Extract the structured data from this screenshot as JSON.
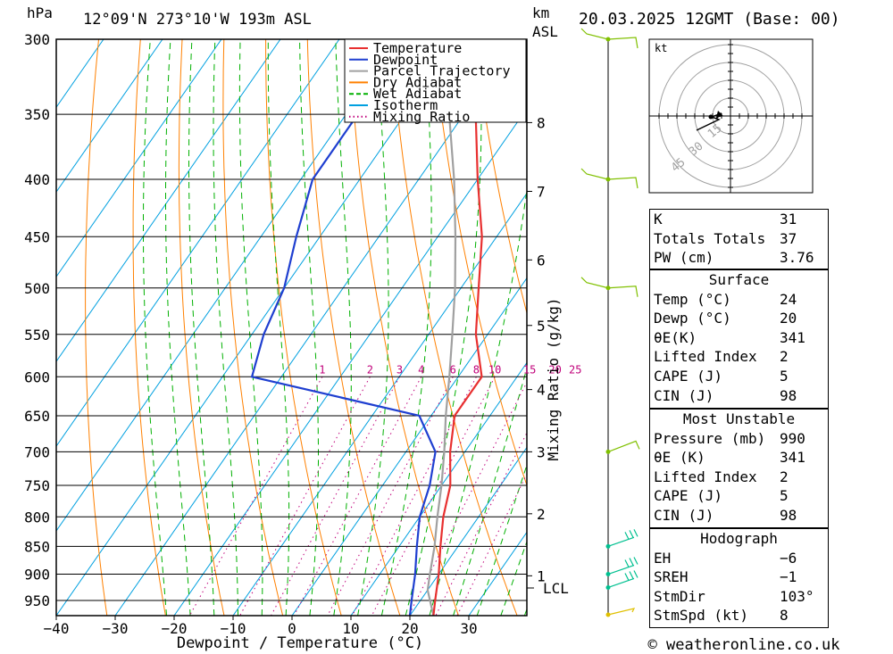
{
  "header": {
    "hpa_label": "hPa",
    "location": "12°09'N  273°10'W  193m  ASL",
    "km_label": "km",
    "asl_label": "ASL",
    "datetime": "20.03.2025  12GMT  (Base: 00)"
  },
  "axes": {
    "xlabel": "Dewpoint / Temperature (°C)",
    "right_label": "Mixing Ratio (g/kg)",
    "pressure_ticks": [
      "300",
      "350",
      "400",
      "450",
      "500",
      "550",
      "600",
      "650",
      "700",
      "750",
      "800",
      "850",
      "900",
      "950"
    ],
    "temp_ticks": [
      "−40",
      "−30",
      "−20",
      "−10",
      "0",
      "10",
      "20",
      "30"
    ],
    "km_ticks": [
      "8",
      "7",
      "6",
      "5",
      "4",
      "3",
      "2",
      "1"
    ],
    "lcl_label": "LCL",
    "mixing_ratio_labels": [
      "1",
      "2",
      "3",
      "4",
      "6",
      "8",
      "10",
      "15",
      "20",
      "25"
    ]
  },
  "legend": {
    "temperature": "Temperature",
    "dewpoint": "Dewpoint",
    "parcel": "Parcel Trajectory",
    "dry_adiabat": "Dry Adiabat",
    "wet_adiabat": "Wet Adiabat",
    "isotherm": "Isotherm",
    "mixing_ratio": "Mixing Ratio"
  },
  "colors": {
    "temperature": "#e83030",
    "dewpoint": "#1f3fd0",
    "parcel": "#a0a0a0",
    "dry_adiabat": "#ff8000",
    "wet_adiabat": "#00b000",
    "isotherm": "#00a0e0",
    "mixing_ratio": "#c0007a",
    "wind": "#80c000",
    "wind_low": "#00c090"
  },
  "chart_data": {
    "type": "skew-t",
    "pressure_range_hpa": [
      300,
      980
    ],
    "temperature_range_c": [
      -40,
      40
    ],
    "temperature_profile": [
      {
        "p": 980,
        "t": 24
      },
      {
        "p": 950,
        "t": 22.5
      },
      {
        "p": 900,
        "t": 20
      },
      {
        "p": 850,
        "t": 17
      },
      {
        "p": 800,
        "t": 14
      },
      {
        "p": 750,
        "t": 11.5
      },
      {
        "p": 700,
        "t": 7.5
      },
      {
        "p": 650,
        "t": 4
      },
      {
        "p": 600,
        "t": 4
      },
      {
        "p": 550,
        "t": -2
      },
      {
        "p": 500,
        "t": -7
      },
      {
        "p": 450,
        "t": -12.5
      },
      {
        "p": 400,
        "t": -20
      },
      {
        "p": 350,
        "t": -28
      },
      {
        "p": 300,
        "t": -36
      }
    ],
    "dewpoint_profile": [
      {
        "p": 980,
        "t": 20
      },
      {
        "p": 950,
        "t": 18.5
      },
      {
        "p": 900,
        "t": 16
      },
      {
        "p": 850,
        "t": 13
      },
      {
        "p": 800,
        "t": 10
      },
      {
        "p": 750,
        "t": 8
      },
      {
        "p": 700,
        "t": 5
      },
      {
        "p": 650,
        "t": -2
      },
      {
        "p": 600,
        "t": -35
      },
      {
        "p": 550,
        "t": -38
      },
      {
        "p": 500,
        "t": -40
      },
      {
        "p": 450,
        "t": -44
      },
      {
        "p": 400,
        "t": -48
      },
      {
        "p": 350,
        "t": -48
      },
      {
        "p": 300,
        "t": -50
      }
    ],
    "parcel_profile": [
      {
        "p": 980,
        "t": 24
      },
      {
        "p": 930,
        "t": 20
      },
      {
        "p": 900,
        "t": 18.5
      },
      {
        "p": 850,
        "t": 16
      },
      {
        "p": 800,
        "t": 13
      },
      {
        "p": 750,
        "t": 10
      },
      {
        "p": 700,
        "t": 6.5
      },
      {
        "p": 650,
        "t": 2.5
      },
      {
        "p": 600,
        "t": -1.5
      },
      {
        "p": 550,
        "t": -6
      },
      {
        "p": 500,
        "t": -11
      },
      {
        "p": 450,
        "t": -17
      },
      {
        "p": 400,
        "t": -24
      },
      {
        "p": 350,
        "t": -32.5
      },
      {
        "p": 300,
        "t": -42
      }
    ],
    "wind_barb_levels_hpa": [
      300,
      400,
      500,
      700,
      850,
      900,
      925,
      980
    ],
    "hodograph": {
      "unit_label": "kt",
      "ring_labels": [
        "15",
        "30",
        "45"
      ]
    }
  },
  "indices": {
    "rows": [
      {
        "label": "K",
        "value": "31"
      },
      {
        "label": "Totals Totals",
        "value": "37"
      },
      {
        "label": "PW (cm)",
        "value": "3.76"
      }
    ]
  },
  "surface": {
    "title": "Surface",
    "rows": [
      {
        "label": "Temp (°C)",
        "value": "24"
      },
      {
        "label": "Dewp (°C)",
        "value": "20"
      },
      {
        "label": "θE(K)",
        "value": "341"
      },
      {
        "label": "Lifted Index",
        "value": "2"
      },
      {
        "label": "CAPE (J)",
        "value": "5"
      },
      {
        "label": "CIN (J)",
        "value": "98"
      }
    ]
  },
  "most_unstable": {
    "title": "Most Unstable",
    "rows": [
      {
        "label": "Pressure (mb)",
        "value": "990"
      },
      {
        "label": "θE (K)",
        "value": "341"
      },
      {
        "label": "Lifted Index",
        "value": "2"
      },
      {
        "label": "CAPE (J)",
        "value": "5"
      },
      {
        "label": "CIN (J)",
        "value": "98"
      }
    ]
  },
  "hodograph_table": {
    "title": "Hodograph",
    "rows": [
      {
        "label": "EH",
        "value": "−6"
      },
      {
        "label": "SREH",
        "value": "−1"
      },
      {
        "label": "StmDir",
        "value": "103°"
      },
      {
        "label": "StmSpd (kt)",
        "value": "8"
      }
    ]
  },
  "footer": {
    "copyright": "© weatheronline.co.uk"
  }
}
